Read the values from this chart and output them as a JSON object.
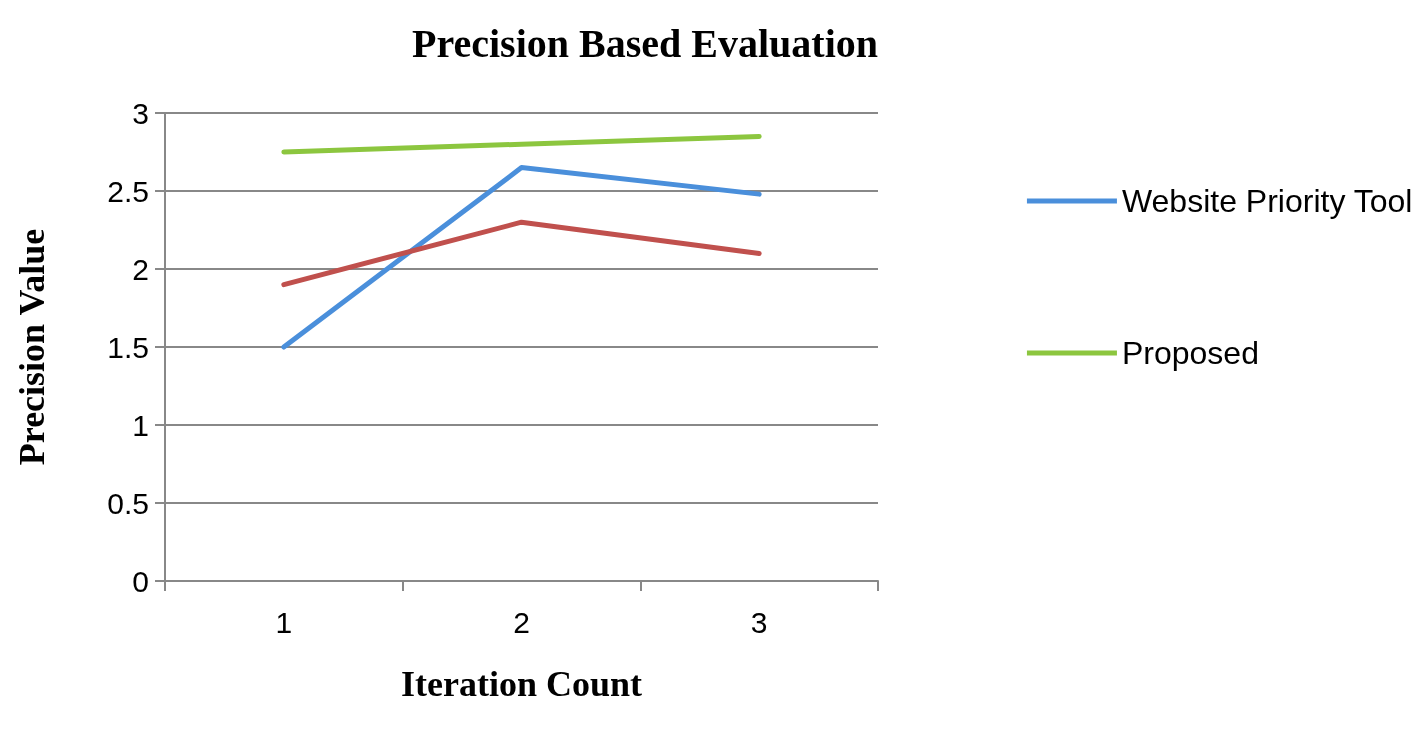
{
  "chart_data": {
    "type": "line",
    "title": "Precision Based Evaluation",
    "xlabel": "Iteration Count",
    "ylabel": "Precision Value",
    "categories": [
      "1",
      "2",
      "3"
    ],
    "series": [
      {
        "name": "Website Priority Tool",
        "color": "#4a8fdb",
        "values": [
          1.5,
          2.65,
          2.48
        ]
      },
      {
        "color": "#c0504d",
        "values": [
          1.9,
          2.3,
          2.1
        ]
      },
      {
        "name": "Proposed",
        "color": "#8cc63f",
        "values": [
          2.75,
          2.8,
          2.85
        ]
      }
    ],
    "ylim": [
      0,
      3
    ],
    "yticks": [
      0,
      0.5,
      1,
      1.5,
      2,
      2.5,
      3
    ],
    "grid": "y",
    "legend": "right",
    "marker": "none",
    "line_style": "solid"
  }
}
